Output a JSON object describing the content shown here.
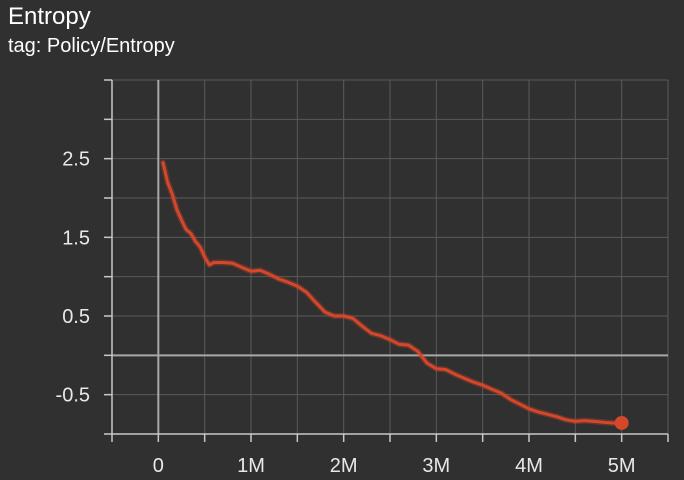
{
  "header": {
    "title": "Entropy",
    "subtitle": "tag: Policy/Entropy"
  },
  "colors": {
    "background": "#303030",
    "series": "#d4472a",
    "grid": "#5a5a5a",
    "axis": "#c8c8c8",
    "zero_line": "#a8a8a8"
  },
  "chart_data": {
    "type": "line",
    "title": "Entropy",
    "subtitle": "tag: Policy/Entropy",
    "xlabel": "",
    "ylabel": "",
    "xlim": [
      -500000,
      5500000
    ],
    "ylim": [
      -1.0,
      3.5
    ],
    "x_ticks": [
      0,
      1000000,
      2000000,
      3000000,
      4000000,
      5000000
    ],
    "x_tick_labels": [
      "0",
      "1M",
      "2M",
      "3M",
      "4M",
      "5M"
    ],
    "y_ticks": [
      2.5,
      1.5,
      0.5,
      -0.5
    ],
    "y_tick_labels": [
      "2.5",
      "1.5",
      "0.5",
      "-0.5"
    ],
    "grid": true,
    "legend": "none",
    "series": [
      {
        "color": "#d4472a",
        "x": [
          50000,
          100000,
          150000,
          200000,
          250000,
          300000,
          350000,
          400000,
          450000,
          500000,
          550000,
          600000,
          700000,
          800000,
          900000,
          1000000,
          1100000,
          1200000,
          1300000,
          1400000,
          1500000,
          1600000,
          1700000,
          1800000,
          1900000,
          2000000,
          2100000,
          2200000,
          2300000,
          2400000,
          2500000,
          2600000,
          2700000,
          2800000,
          2900000,
          3000000,
          3100000,
          3200000,
          3300000,
          3400000,
          3500000,
          3600000,
          3700000,
          3800000,
          3900000,
          4000000,
          4100000,
          4200000,
          4300000,
          4400000,
          4500000,
          4600000,
          4700000,
          4800000,
          4900000,
          5000000
        ],
        "y": [
          2.45,
          2.2,
          2.05,
          1.85,
          1.72,
          1.6,
          1.55,
          1.45,
          1.38,
          1.25,
          1.15,
          1.18,
          1.18,
          1.17,
          1.12,
          1.07,
          1.08,
          1.03,
          0.97,
          0.93,
          0.88,
          0.8,
          0.67,
          0.55,
          0.5,
          0.5,
          0.47,
          0.37,
          0.28,
          0.25,
          0.2,
          0.14,
          0.13,
          0.05,
          -0.1,
          -0.17,
          -0.18,
          -0.24,
          -0.29,
          -0.34,
          -0.38,
          -0.43,
          -0.48,
          -0.56,
          -0.62,
          -0.68,
          -0.72,
          -0.75,
          -0.78,
          -0.82,
          -0.84,
          -0.83,
          -0.84,
          -0.85,
          -0.86,
          -0.86
        ]
      }
    ]
  }
}
